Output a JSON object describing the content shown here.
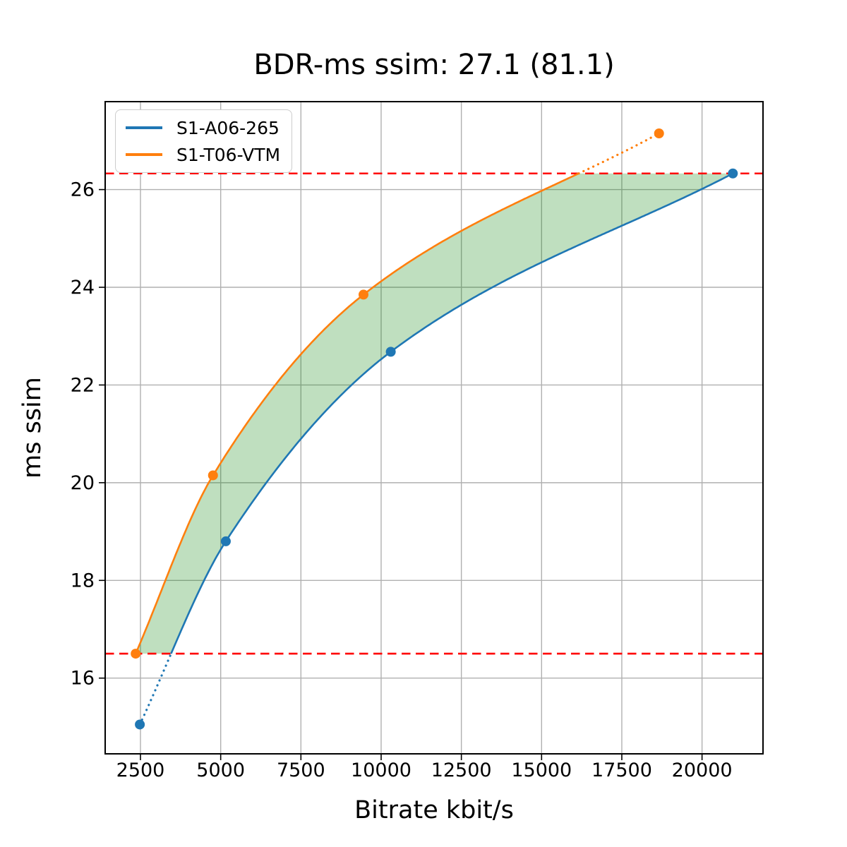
{
  "title": "BDR-ms ssim: 27.1 (81.1)",
  "chart_data": {
    "type": "line",
    "title": "BDR-ms ssim: 27.1 (81.1)",
    "xlabel": "Bitrate kbit/s",
    "ylabel": "ms ssim",
    "xlim": [
      1400,
      21900
    ],
    "ylim": [
      14.45,
      27.8
    ],
    "x_ticks": [
      2500,
      5000,
      7500,
      10000,
      12500,
      15000,
      17500,
      20000
    ],
    "y_ticks": [
      16,
      18,
      20,
      22,
      24,
      26
    ],
    "grid": true,
    "grid_color": "#b0b0b0",
    "legend_position": "upper-left",
    "series": [
      {
        "name": "S1-A06-265",
        "color": "#1f77b4",
        "x": [
          2480,
          5160,
          10300,
          20960
        ],
        "y": [
          15.05,
          18.8,
          22.68,
          26.33
        ]
      },
      {
        "name": "S1-T06-VTM",
        "color": "#ff7f0e",
        "x": [
          2350,
          4760,
          9450,
          18660
        ],
        "y": [
          16.5,
          20.15,
          23.85,
          27.15
        ]
      }
    ],
    "overlap_bounds": {
      "lower": 16.5,
      "upper": 26.33,
      "color": "#ff0000",
      "style": "dashed"
    },
    "fill_between": {
      "color": "#008000",
      "opacity": 0.25
    }
  }
}
